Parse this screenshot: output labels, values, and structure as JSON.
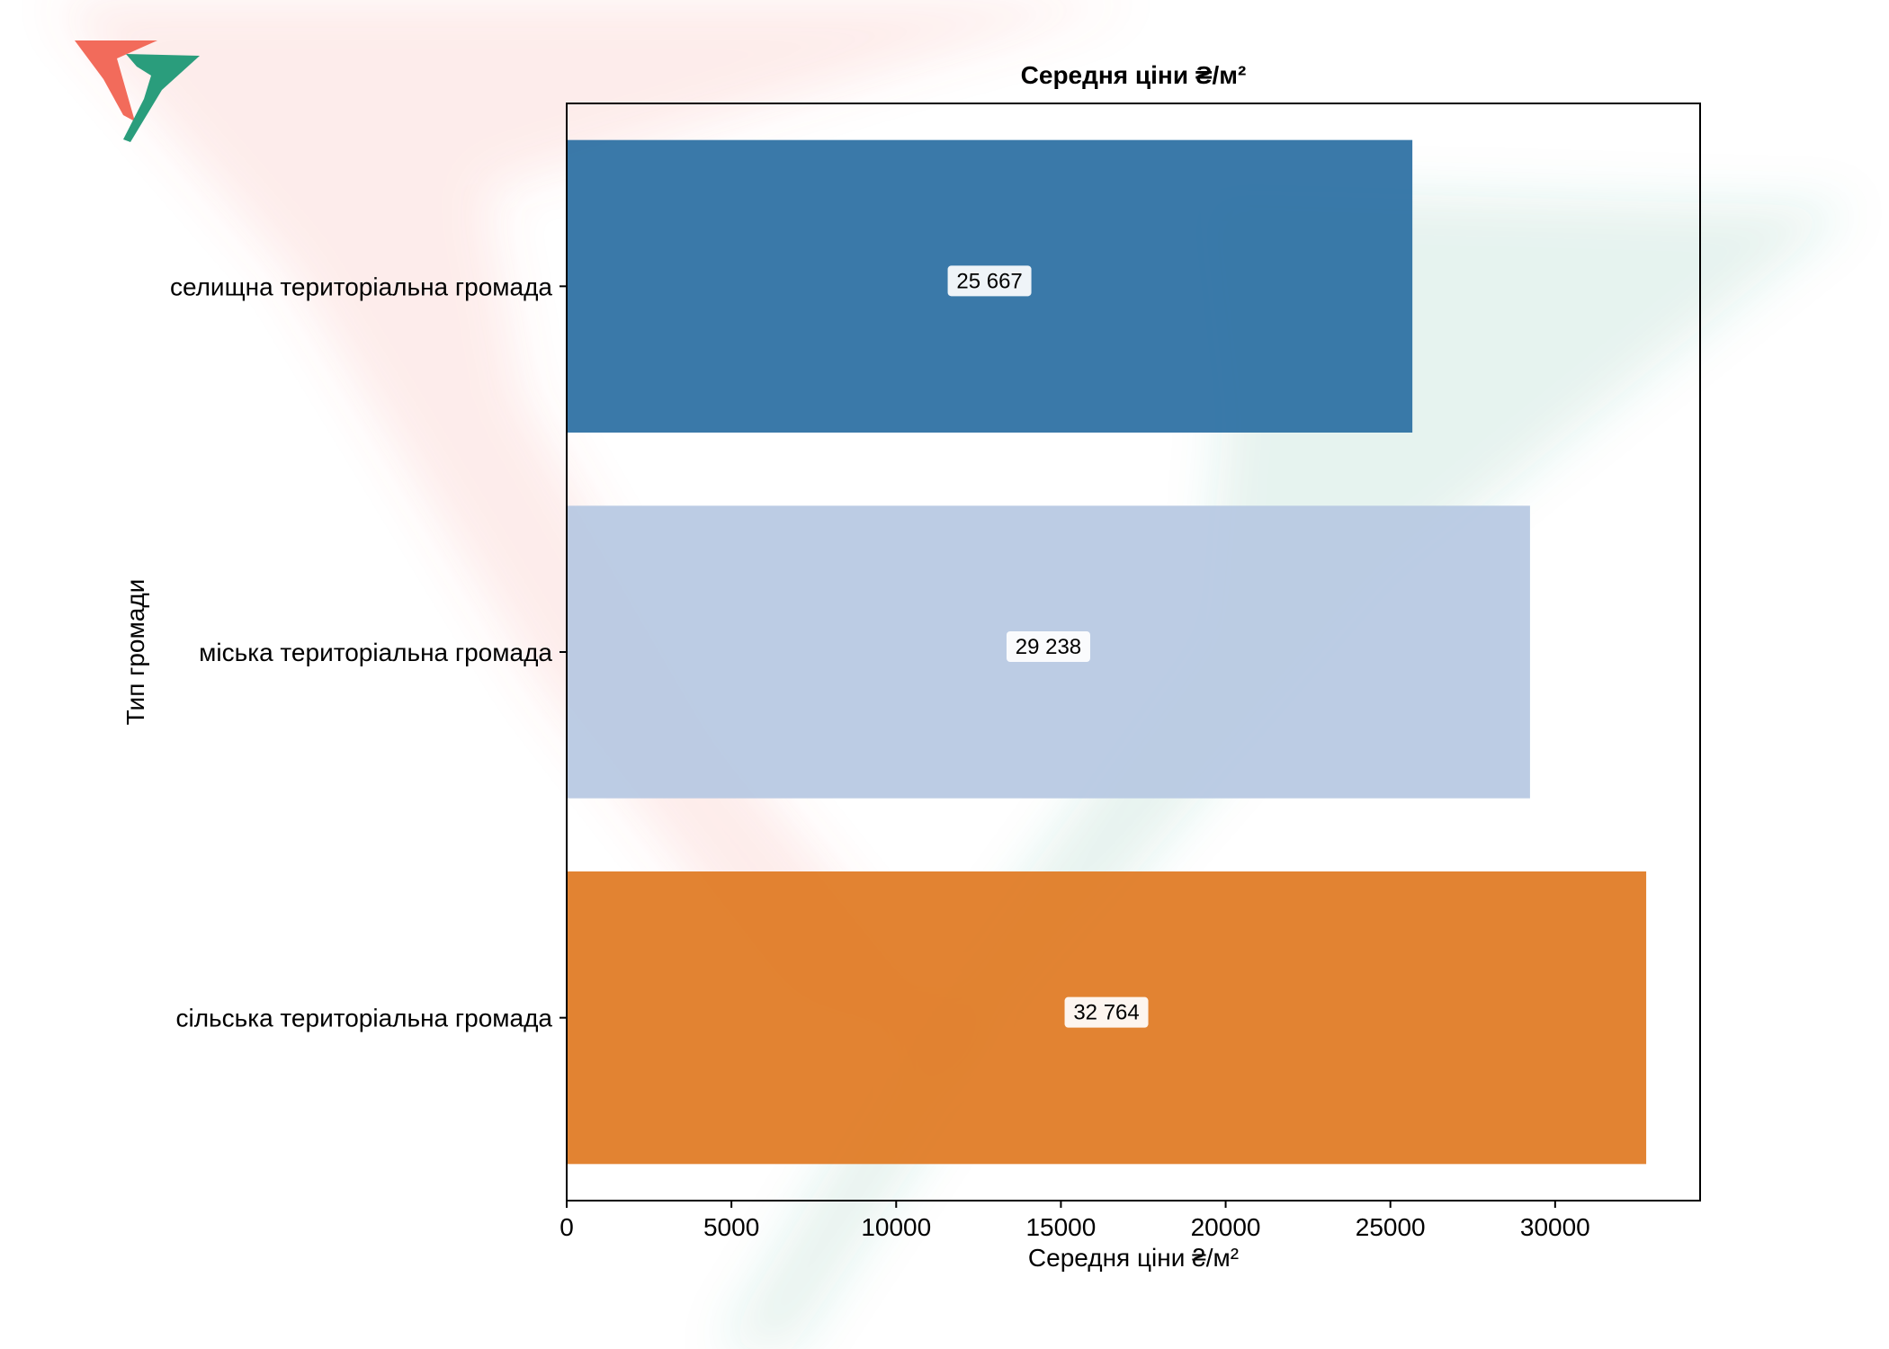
{
  "colors": {
    "background": "#ffffff",
    "bars": [
      "#2b6fa3",
      "#b7c8e2",
      "#e07a22"
    ],
    "watermark_red": "#f26b5b",
    "watermark_green": "#2a9d7c",
    "axis": "#000000"
  },
  "chart_data": {
    "type": "bar",
    "orientation": "horizontal",
    "title": "Середня ціни ₴/м²",
    "xlabel": "Середня ціни ₴/м²",
    "ylabel": "Тип громади",
    "categories": [
      "селищна територіальна громада",
      "міська територіальна громада",
      "сільська територіальна громада"
    ],
    "values": [
      25667,
      29238,
      32764
    ],
    "value_labels": [
      "25 667",
      "29 238",
      "32 764"
    ],
    "xlim": [
      0,
      34400
    ],
    "xticks": [
      0,
      5000,
      10000,
      15000,
      20000,
      25000,
      30000
    ],
    "xtick_labels": [
      "0",
      "5000",
      "10000",
      "15000",
      "20000",
      "25000",
      "30000"
    ],
    "grid": false,
    "legend": "none"
  }
}
